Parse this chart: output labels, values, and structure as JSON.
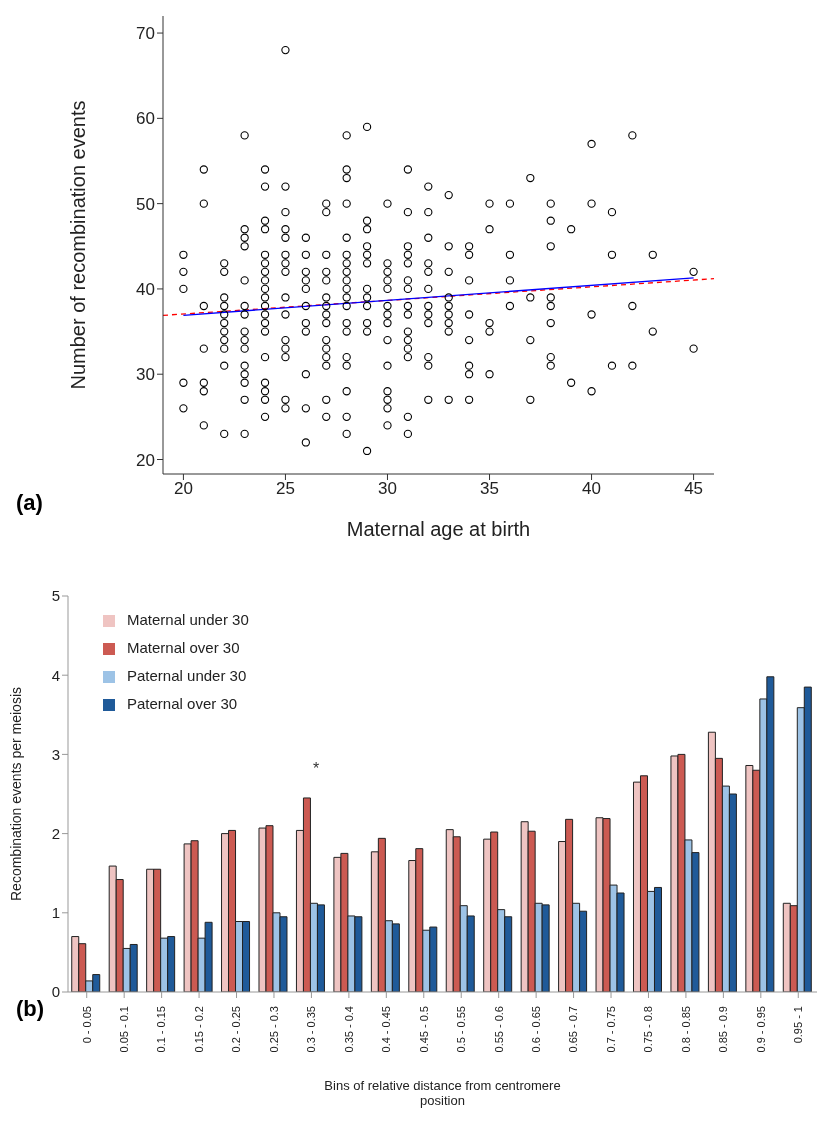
{
  "chart_data": [
    {
      "type": "scatter",
      "xlabel": "Maternal age at birth",
      "ylabel": "Number of recombination events",
      "xlim": [
        19,
        46
      ],
      "ylim": [
        18.3,
        72
      ],
      "xticks": [
        20,
        25,
        30,
        35,
        40,
        45
      ],
      "yticks": [
        20,
        30,
        40,
        50,
        60,
        70
      ],
      "annotations": [
        "(a)"
      ],
      "series": [
        {
          "type": "scatter",
          "color": "#000000",
          "marker": "circle",
          "x": [
            20,
            20,
            20,
            20,
            20,
            21,
            21,
            21,
            21,
            21,
            21,
            21,
            22,
            22,
            22,
            22,
            22,
            22,
            22,
            22,
            22,
            22,
            22,
            23,
            23,
            23,
            23,
            23,
            23,
            23,
            23,
            23,
            23,
            23,
            23,
            23,
            23,
            23,
            24,
            24,
            24,
            24,
            24,
            24,
            24,
            24,
            24,
            24,
            24,
            24,
            24,
            24,
            24,
            24,
            24,
            24,
            24,
            25,
            25,
            25,
            25,
            25,
            25,
            25,
            25,
            25,
            25,
            25,
            25,
            25,
            25,
            25,
            26,
            26,
            26,
            26,
            26,
            26,
            26,
            26,
            26,
            26,
            26,
            27,
            27,
            27,
            27,
            27,
            27,
            27,
            27,
            27,
            27,
            27,
            27,
            27,
            27,
            27,
            28,
            28,
            28,
            28,
            28,
            28,
            28,
            28,
            28,
            28,
            28,
            28,
            28,
            28,
            28,
            28,
            28,
            28,
            28,
            29,
            29,
            29,
            29,
            29,
            29,
            29,
            29,
            29,
            29,
            29,
            29,
            30,
            30,
            30,
            30,
            30,
            30,
            30,
            30,
            30,
            30,
            30,
            30,
            30,
            30,
            31,
            31,
            31,
            31,
            31,
            31,
            31,
            31,
            31,
            31,
            31,
            31,
            31,
            31,
            31,
            32,
            32,
            32,
            32,
            32,
            32,
            32,
            32,
            32,
            32,
            32,
            32,
            33,
            33,
            33,
            33,
            33,
            33,
            33,
            33,
            33,
            34,
            34,
            34,
            34,
            34,
            34,
            34,
            34,
            35,
            35,
            35,
            35,
            35,
            36,
            36,
            36,
            36,
            37,
            37,
            37,
            37,
            38,
            38,
            38,
            38,
            38,
            38,
            38,
            38,
            39,
            39,
            40,
            40,
            40,
            40,
            41,
            41,
            41,
            42,
            42,
            42,
            43,
            43,
            45,
            45
          ],
          "values": [
            44,
            42,
            40,
            29,
            26,
            54,
            50,
            38,
            33,
            29,
            28,
            24,
            43,
            42,
            39,
            38,
            37,
            36,
            35,
            34,
            33,
            31,
            23,
            58,
            47,
            46,
            45,
            41,
            38,
            37,
            35,
            34,
            33,
            31,
            30,
            29,
            27,
            23,
            54,
            52,
            48,
            47,
            44,
            43,
            42,
            41,
            40,
            39,
            38,
            37,
            36,
            35,
            32,
            29,
            28,
            27,
            25,
            68,
            52,
            49,
            47,
            46,
            44,
            43,
            42,
            39,
            37,
            34,
            33,
            32,
            27,
            26,
            46,
            44,
            42,
            41,
            40,
            38,
            36,
            35,
            30,
            26,
            22,
            50,
            49,
            44,
            42,
            41,
            39,
            38,
            37,
            36,
            34,
            33,
            32,
            31,
            27,
            25,
            58,
            54,
            53,
            50,
            46,
            44,
            43,
            42,
            41,
            40,
            39,
            38,
            36,
            35,
            32,
            31,
            28,
            25,
            23,
            59,
            48,
            47,
            45,
            44,
            43,
            40,
            39,
            38,
            36,
            35,
            21,
            50,
            43,
            42,
            41,
            40,
            38,
            37,
            36,
            34,
            31,
            28,
            27,
            26,
            24,
            54,
            49,
            45,
            44,
            43,
            41,
            40,
            38,
            37,
            35,
            34,
            33,
            32,
            25,
            23,
            52,
            49,
            46,
            43,
            42,
            40,
            38,
            37,
            36,
            32,
            31,
            27,
            51,
            45,
            42,
            39,
            38,
            37,
            36,
            35,
            27,
            45,
            44,
            41,
            37,
            34,
            31,
            30,
            27,
            50,
            47,
            36,
            35,
            30,
            50,
            44,
            41,
            38,
            53,
            39,
            34,
            27,
            50,
            48,
            45,
            39,
            38,
            36,
            32,
            31,
            47,
            29,
            57,
            50,
            37,
            28,
            49,
            44,
            31,
            58,
            38,
            31,
            44,
            35,
            42,
            33
          ]
        },
        {
          "type": "line",
          "color": "#ff0000",
          "line_style": "dashed",
          "marker": "none",
          "x": [
            19,
            46
          ],
          "values": [
            36.9,
            41.2
          ]
        },
        {
          "type": "line",
          "color": "#0000ff",
          "line_style": "solid",
          "marker": "none",
          "x": [
            20,
            45
          ],
          "values": [
            36.9,
            41.3
          ]
        }
      ]
    },
    {
      "type": "bar",
      "xlabel": "Bins of relative distance from centromere position",
      "ylabel": "Recombination events per meiosis",
      "ylim": [
        0,
        5
      ],
      "yticks": [
        0,
        1,
        2,
        3,
        4,
        5
      ],
      "legend": "top left",
      "annotations": [
        "(b)",
        "*"
      ],
      "categories": [
        "0 - 0.05",
        "0.05 - 0.1",
        "0.1 - 0.15",
        "0.15 - 0.2",
        "0.2 - 0.25",
        "0.25 - 0.3",
        "0.3 - 0.35",
        "0.35 - 0.4",
        "0.4 - 0.45",
        "0.45 - 0.5",
        "0.5 - 0.55",
        "0.55 - 0.6",
        "0.6 - 0.65",
        "0.65 - 0.7",
        "0.7 - 0.75",
        "0.75 - 0.8",
        "0.8 - 0.85",
        "0.85 - 0.9",
        "0.9 - 0.95",
        "0.95 - 1"
      ],
      "series": [
        {
          "name": "Maternal under 30",
          "color": "#efc4c2",
          "values": [
            0.7,
            1.59,
            1.55,
            1.87,
            2.0,
            2.07,
            2.04,
            1.7,
            1.77,
            1.66,
            2.05,
            1.93,
            2.15,
            1.9,
            2.2,
            2.65,
            2.98,
            3.28,
            2.86,
            1.12
          ]
        },
        {
          "name": "Maternal over 30",
          "color": "#cc5a52",
          "values": [
            0.61,
            1.42,
            1.55,
            1.91,
            2.04,
            2.1,
            2.45,
            1.75,
            1.94,
            1.81,
            1.96,
            2.02,
            2.03,
            2.18,
            2.19,
            2.73,
            3.0,
            2.95,
            2.8,
            1.09
          ]
        },
        {
          "name": "Paternal under 30",
          "color": "#9dc3e6",
          "values": [
            0.14,
            0.55,
            0.68,
            0.68,
            0.89,
            1.0,
            1.12,
            0.96,
            0.9,
            0.78,
            1.09,
            1.04,
            1.12,
            1.12,
            1.35,
            1.27,
            1.92,
            2.6,
            3.7,
            3.59
          ]
        },
        {
          "name": "Paternal over 30",
          "color": "#1f5a99",
          "values": [
            0.22,
            0.6,
            0.7,
            0.88,
            0.89,
            0.95,
            1.1,
            0.95,
            0.86,
            0.82,
            0.96,
            0.95,
            1.1,
            1.02,
            1.25,
            1.32,
            1.76,
            2.5,
            3.98,
            3.85
          ]
        }
      ]
    }
  ]
}
